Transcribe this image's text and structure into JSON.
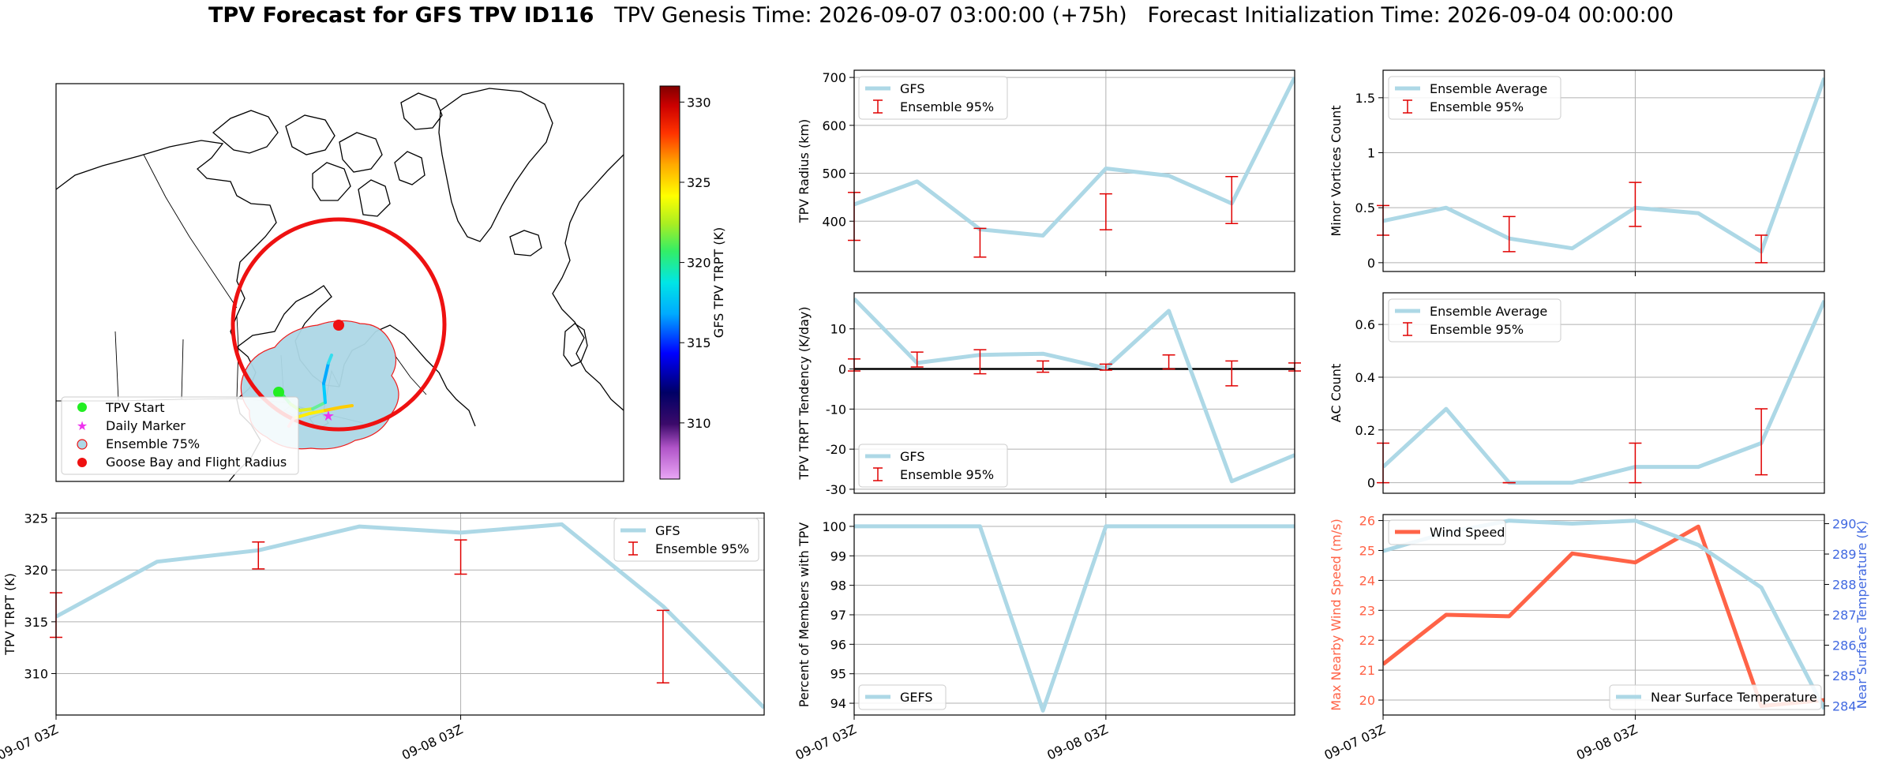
{
  "title": {
    "bold": "TPV Forecast for GFS TPV ID116",
    "genesis": "TPV Genesis Time: 2026-09-07 03:00:00 (+75h)",
    "init": "Forecast Initialization Time: 2026-09-04 00:00:00"
  },
  "colors": {
    "gfs_line": "#add8e6",
    "error_bar": "#e00000",
    "wind": "#ff6347",
    "temp_axis": "#4169e1",
    "flight_radius": "#ee1111",
    "ensemble_fill": "#add8e6"
  },
  "map": {
    "colorbar_label": "GFS TPV TRPT (K)",
    "colorbar_ticks": [
      "310",
      "315",
      "320",
      "325",
      "330"
    ],
    "colorbar_range": [
      306.5,
      331
    ],
    "legend": [
      "TPV Start",
      "Daily Marker",
      "Ensemble 75%",
      "Goose Bay and Flight Radius"
    ]
  },
  "chart_data": [
    {
      "id": "trpt",
      "type": "line",
      "ylabel": "TPV TRPT (K)",
      "ylim": [
        306,
        325.5
      ],
      "yticks": [
        310,
        315,
        320,
        325
      ],
      "xticks": [
        "09-07 03Z",
        "09-08 03Z"
      ],
      "xtick_pos": [
        0,
        4
      ],
      "series": [
        {
          "name": "GFS",
          "x": [
            0,
            1,
            2,
            3,
            4,
            5,
            6,
            7
          ],
          "values": [
            315.5,
            320.8,
            321.9,
            324.2,
            323.6,
            324.4,
            316.5,
            306.7
          ]
        }
      ],
      "errorbars": {
        "name": "Ensemble 95%",
        "x": [
          0,
          2,
          4,
          6
        ],
        "low": [
          313.5,
          320.1,
          319.6,
          309.1
        ],
        "high": [
          317.8,
          322.7,
          322.9,
          316.1
        ]
      },
      "legend": "top-right"
    },
    {
      "id": "radius",
      "type": "line",
      "ylabel": "TPV Radius (km)",
      "ylim": [
        295,
        715
      ],
      "yticks": [
        400,
        500,
        600,
        700
      ],
      "xtick_pos": [
        4
      ],
      "series": [
        {
          "name": "GFS",
          "x": [
            0,
            1,
            2,
            3,
            4,
            5,
            6,
            7
          ],
          "values": [
            435,
            483,
            383,
            370,
            510,
            495,
            437,
            700
          ]
        }
      ],
      "errorbars": {
        "name": "Ensemble 95%",
        "x": [
          0,
          2,
          4,
          6
        ],
        "low": [
          360,
          325,
          382,
          395
        ],
        "high": [
          460,
          385,
          457,
          493
        ]
      },
      "legend": "top-left"
    },
    {
      "id": "tendency",
      "type": "line",
      "ylabel": "TPV TRPT Tendency (K/day)",
      "ylim": [
        -31,
        19
      ],
      "yticks": [
        -30,
        -20,
        -10,
        0,
        10
      ],
      "xtick_pos": [
        4
      ],
      "zero_line": true,
      "series": [
        {
          "name": "GFS",
          "x": [
            0,
            1,
            2,
            3,
            4,
            5,
            6,
            7
          ],
          "values": [
            17.5,
            1.5,
            3.5,
            3.8,
            0.2,
            14.5,
            -28,
            -21.5
          ]
        }
      ],
      "errorbars": {
        "name": "Ensemble 95%",
        "x": [
          0,
          1,
          2,
          3,
          4,
          5,
          6,
          7
        ],
        "low": [
          -0.5,
          0.5,
          -1.2,
          -0.8,
          -0.3,
          0,
          -4.2,
          -0.5
        ],
        "high": [
          2.5,
          4.2,
          4.8,
          2,
          1.2,
          3.5,
          2,
          1.5
        ]
      },
      "legend": "bottom-left"
    },
    {
      "id": "members",
      "type": "line",
      "ylabel": "Percent of Members with TPV",
      "ylim": [
        93.6,
        100.4
      ],
      "yticks": [
        94,
        95,
        96,
        97,
        98,
        99,
        100
      ],
      "xticks": [
        "09-07 03Z",
        "09-08 03Z"
      ],
      "xtick_pos": [
        0,
        4
      ],
      "series": [
        {
          "name": "GEFS",
          "x": [
            0,
            1,
            2,
            3,
            4,
            5,
            6,
            7
          ],
          "values": [
            100,
            100,
            100,
            93.75,
            100,
            100,
            100,
            100
          ]
        }
      ],
      "legend": "bottom-left"
    },
    {
      "id": "minor",
      "type": "line",
      "ylabel": "Minor Vortices Count",
      "ylim": [
        -0.08,
        1.75
      ],
      "yticks": [
        0.0,
        0.5,
        1.0,
        1.5
      ],
      "xtick_pos": [
        4
      ],
      "series": [
        {
          "name": "Ensemble Average",
          "x": [
            0,
            1,
            2,
            3,
            4,
            5,
            6,
            7
          ],
          "values": [
            0.38,
            0.5,
            0.22,
            0.13,
            0.5,
            0.45,
            0.1,
            1.68
          ]
        }
      ],
      "errorbars": {
        "name": "Ensemble 95%",
        "x": [
          0,
          2,
          4,
          6
        ],
        "low": [
          0.25,
          0.1,
          0.33,
          0.0
        ],
        "high": [
          0.52,
          0.42,
          0.73,
          0.25
        ]
      },
      "legend": "top-left"
    },
    {
      "id": "ac",
      "type": "line",
      "ylabel": "AC Count",
      "ylim": [
        -0.04,
        0.72
      ],
      "yticks": [
        0.0,
        0.2,
        0.4,
        0.6
      ],
      "xtick_pos": [
        4
      ],
      "series": [
        {
          "name": "Ensemble Average",
          "x": [
            0,
            1,
            2,
            3,
            4,
            5,
            6,
            7
          ],
          "values": [
            0.06,
            0.28,
            0.0,
            0.0,
            0.06,
            0.06,
            0.15,
            0.69
          ]
        }
      ],
      "errorbars": {
        "name": "Ensemble 95%",
        "x": [
          0,
          2,
          4,
          6
        ],
        "low": [
          0.0,
          0.0,
          0.0,
          0.03
        ],
        "high": [
          0.15,
          0.0,
          0.15,
          0.28
        ]
      },
      "legend": "top-left"
    },
    {
      "id": "wind",
      "type": "line",
      "ylabel": "Max Nearby Wind Speed (m/s)",
      "ylabel2": "Near Surface Temperature (K)",
      "ylim": [
        19.5,
        26.2
      ],
      "yticks": [
        20,
        21,
        22,
        23,
        24,
        25,
        26
      ],
      "ylim2": [
        283.7,
        290.3
      ],
      "yticks2": [
        284,
        285,
        286,
        287,
        288,
        289,
        290
      ],
      "xticks": [
        "09-07 03Z",
        "09-08 03Z"
      ],
      "xtick_pos": [
        0,
        4
      ],
      "series": [
        {
          "name": "Wind Speed",
          "x": [
            0,
            1,
            2,
            3,
            4,
            5,
            6,
            7
          ],
          "values": [
            21.2,
            22.85,
            22.8,
            24.9,
            24.6,
            25.8,
            19.8,
            20.0
          ]
        },
        {
          "name": "Near Surface Temperature",
          "axis": "right",
          "x": [
            0,
            1,
            2,
            3,
            4,
            5,
            6,
            7
          ],
          "values": [
            289.1,
            289.7,
            290.1,
            290.0,
            290.1,
            289.3,
            287.9,
            283.9
          ]
        }
      ],
      "legend": "top-left / bottom-right"
    }
  ]
}
